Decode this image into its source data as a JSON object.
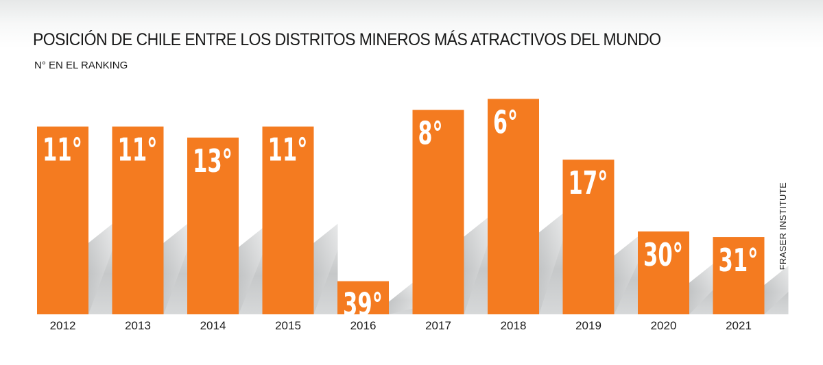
{
  "header": {
    "title": "POSICIÓN DE CHILE ENTRE LOS DISTRITOS MINEROS MÁS ATRACTIVOS DEL MUNDO",
    "subtitle": "N° EN EL RANKING",
    "source": "FUENTE: FRASER INSTITUTE"
  },
  "colors": {
    "bar": "#f47b20",
    "shadow": "#c8cacb",
    "text": "#1a1a1a"
  },
  "chart_data": {
    "type": "bar",
    "title": "POSICIÓN DE CHILE ENTRE LOS DISTRITOS MINEROS MÁS ATRACTIVOS DEL MUNDO",
    "ylabel": "N° EN EL RANKING",
    "xlabel": "",
    "orientation": "inverted-rank",
    "ylim": [
      0,
      45
    ],
    "categories": [
      "2012",
      "2013",
      "2014",
      "2015",
      "2016",
      "2017",
      "2018",
      "2019",
      "2020",
      "2021"
    ],
    "values": [
      11,
      11,
      13,
      11,
      39,
      8,
      6,
      17,
      30,
      31
    ],
    "data_labels": [
      "11°",
      "11°",
      "13°",
      "11°",
      "39°",
      "8°",
      "6°",
      "17°",
      "30°",
      "31°"
    ],
    "source": "FUENTE: FRASER INSTITUTE"
  }
}
